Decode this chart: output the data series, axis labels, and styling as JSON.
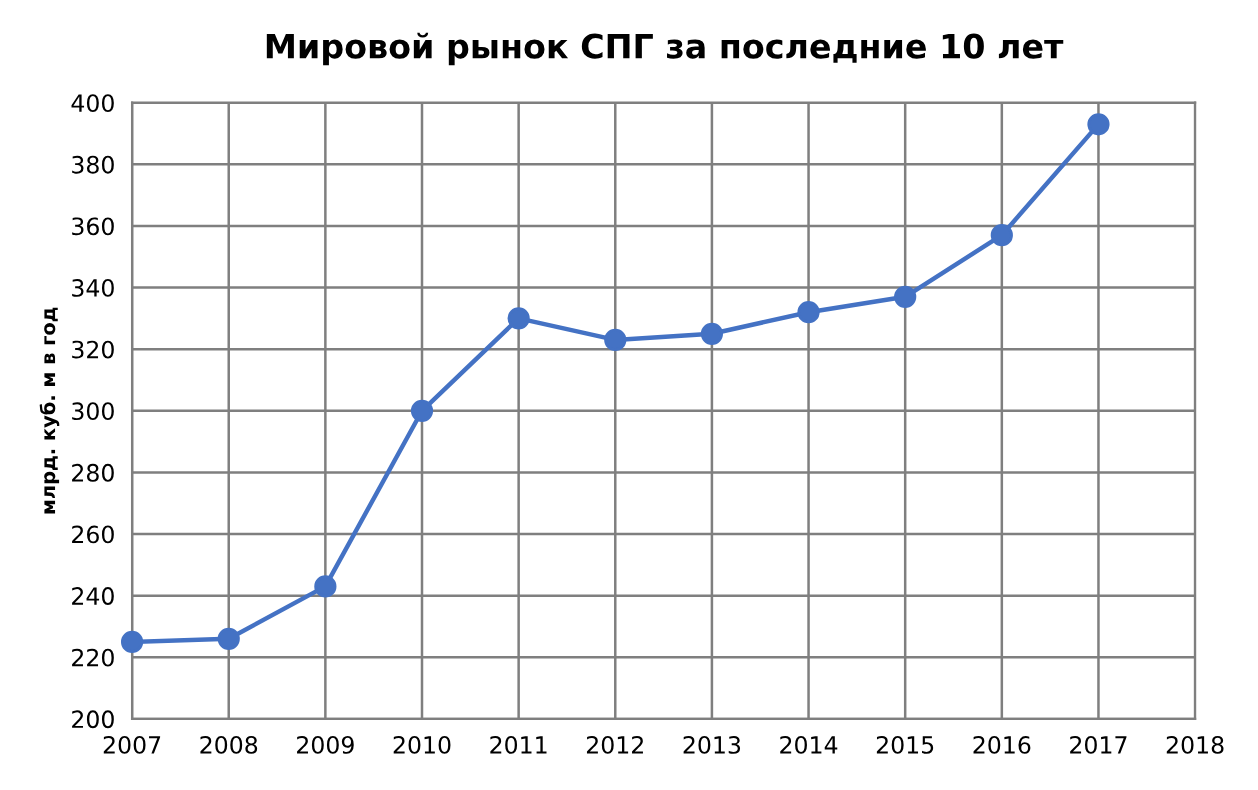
{
  "chart_data": {
    "type": "line",
    "title": "Мировой рынок СПГ за последние 10 лет",
    "ylabel": "млрд. куб. м в год",
    "x": [
      2007,
      2008,
      2009,
      2010,
      2011,
      2012,
      2013,
      2014,
      2015,
      2016,
      2017
    ],
    "series": [
      {
        "color": "#4472c4",
        "values": [
          225,
          226,
          243,
          300,
          330,
          323,
          325,
          332,
          337,
          357,
          393
        ]
      }
    ],
    "xlim": [
      2007,
      2018
    ],
    "xticks": [
      2007,
      2008,
      2009,
      2010,
      2011,
      2012,
      2013,
      2014,
      2015,
      2016,
      2017,
      2018
    ],
    "ylim": [
      200,
      400
    ],
    "yticks": [
      200,
      220,
      240,
      260,
      280,
      300,
      320,
      340,
      360,
      380,
      400
    ],
    "grid": true,
    "marker": "circle",
    "line_style": "solid",
    "legend": false
  }
}
